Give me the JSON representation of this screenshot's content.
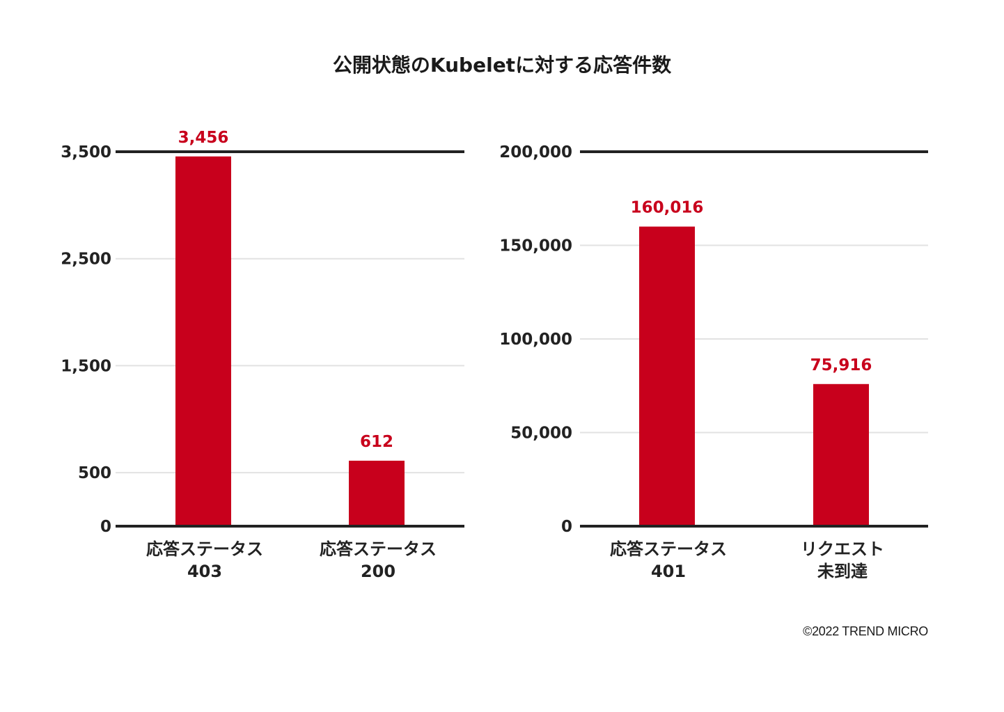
{
  "title": "公開状態のKubeletに対する応答件数",
  "copyright": "©2022 TREND MICRO",
  "colors": {
    "bar": "#c8001c",
    "label": "#c8001c",
    "axis": "#222222",
    "grid": "#e2e2e2"
  },
  "chart_data": [
    {
      "type": "bar",
      "categories": [
        [
          "応答ステータス",
          "403"
        ],
        [
          "応答ステータス",
          "200"
        ]
      ],
      "values": [
        3456,
        612
      ],
      "value_labels": [
        "3,456",
        "612"
      ],
      "yticks": [
        0,
        500,
        1500,
        2500,
        3500
      ],
      "ytick_labels": [
        "0",
        "500",
        "1,500",
        "2,500",
        "3,500"
      ],
      "ylim": [
        0,
        3500
      ]
    },
    {
      "type": "bar",
      "categories": [
        [
          "応答ステータス",
          "401"
        ],
        [
          "リクエスト",
          "未到達"
        ]
      ],
      "values": [
        160016,
        75916
      ],
      "value_labels": [
        "160,016",
        "75,916"
      ],
      "yticks": [
        0,
        50000,
        100000,
        150000,
        200000
      ],
      "ytick_labels": [
        "0",
        "50,000",
        "100,000",
        "150,000",
        "200,000"
      ],
      "ylim": [
        0,
        200000
      ]
    }
  ]
}
